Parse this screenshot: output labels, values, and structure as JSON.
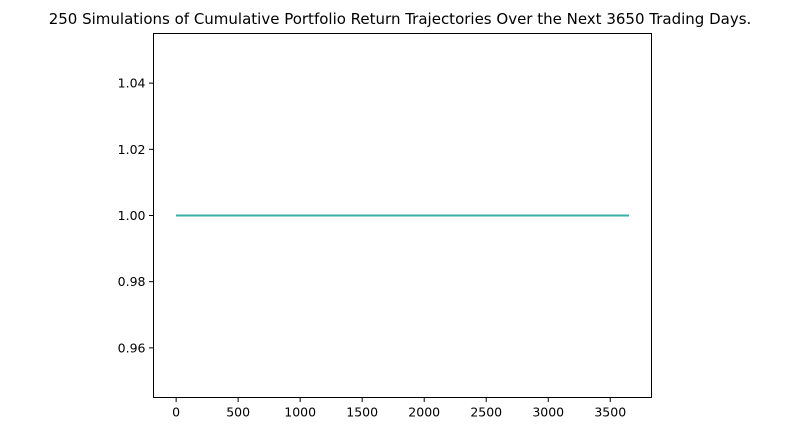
{
  "chart_data": {
    "type": "line",
    "title": "250 Simulations of Cumulative Portfolio Return Trajectories Over the Next 3650 Trading Days.",
    "xlabel": "",
    "ylabel": "",
    "xlim": [
      -182.5,
      3832.5
    ],
    "ylim": [
      0.945,
      1.055
    ],
    "x_ticks": [
      0,
      500,
      1000,
      1500,
      2000,
      2500,
      3000,
      3500
    ],
    "y_ticks": [
      0.96,
      0.98,
      1.0,
      1.02,
      1.04
    ],
    "y_tick_labels": [
      "0.96",
      "0.98",
      "1.00",
      "1.02",
      "1.04"
    ],
    "grid": false,
    "legend": "none",
    "num_series": 250,
    "x_range": [
      0,
      3650
    ],
    "series_value": 1.0,
    "series_color": "#3aafa9"
  }
}
